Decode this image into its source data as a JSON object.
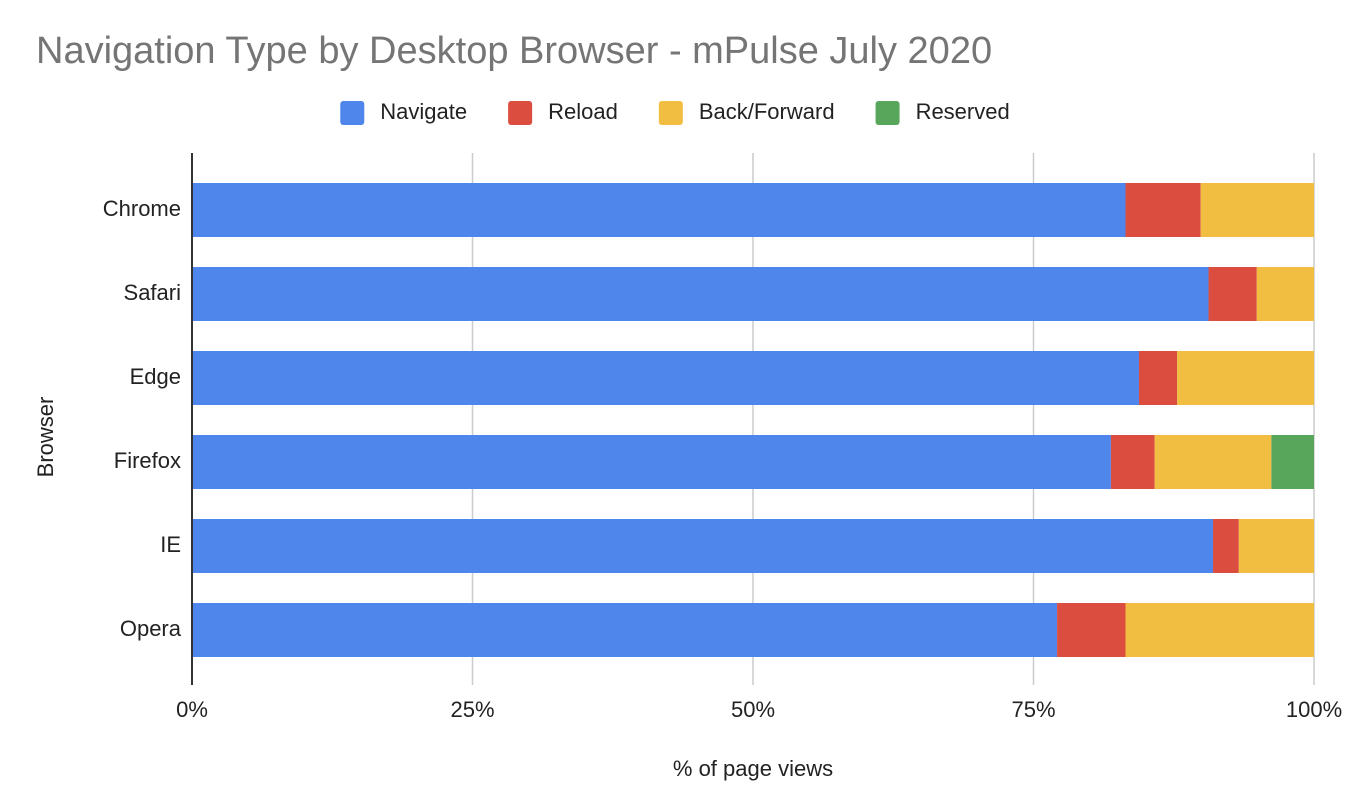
{
  "chart_data": {
    "type": "stacked-bar-horizontal",
    "title": "Navigation Type by Desktop Browser - mPulse July 2020",
    "x_label": "% of page views",
    "y_label": "Browser",
    "categories": [
      "Chrome",
      "Safari",
      "Edge",
      "Firefox",
      "IE",
      "Opera"
    ],
    "series": [
      {
        "name": "Navigate",
        "color": "#4f86ec",
        "values": [
          83.2,
          90.6,
          84.4,
          81.9,
          91.0,
          77.1
        ]
      },
      {
        "name": "Reload",
        "color": "#db4d3f",
        "values": [
          6.7,
          4.3,
          3.4,
          3.9,
          2.3,
          6.1
        ]
      },
      {
        "name": "Back/Forward",
        "color": "#f2be42",
        "values": [
          10.1,
          5.1,
          12.2,
          10.4,
          6.7,
          16.8
        ]
      },
      {
        "name": "Reserved",
        "color": "#58a55c",
        "values": [
          0,
          0,
          0,
          3.8,
          0,
          0
        ]
      }
    ],
    "xlim": [
      0,
      100
    ],
    "xticks": [
      {
        "value": 0,
        "label": "0%"
      },
      {
        "value": 25,
        "label": "25%"
      },
      {
        "value": 50,
        "label": "50%"
      },
      {
        "value": 75,
        "label": "75%"
      },
      {
        "value": 100,
        "label": "100%"
      }
    ],
    "grid": true,
    "legend": "top"
  }
}
